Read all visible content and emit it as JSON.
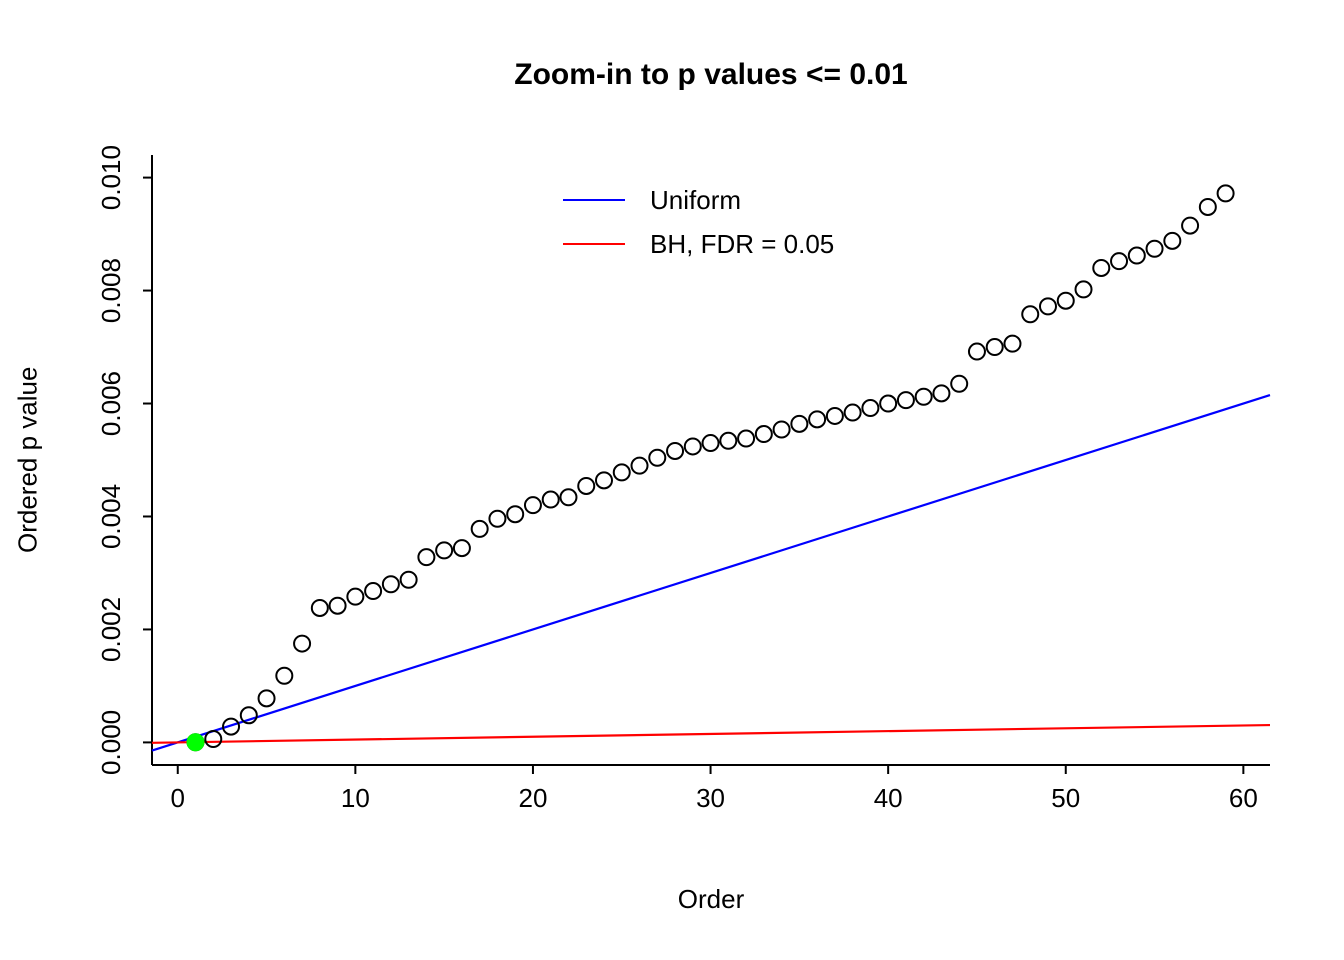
{
  "title": "Zoom-in to p values <= 0.01",
  "chart_data": {
    "type": "scatter",
    "title": "Zoom-in to p values <= 0.01",
    "xlabel": "Order",
    "ylabel": "Ordered p value",
    "xlim": [
      -1.45,
      61.5
    ],
    "ylim": [
      -0.0004,
      0.0104
    ],
    "grid": false,
    "x_ticks": [
      0,
      10,
      20,
      30,
      40,
      50,
      60
    ],
    "x_tick_labels": [
      "0",
      "10",
      "20",
      "30",
      "40",
      "50",
      "60"
    ],
    "y_ticks": [
      0.0,
      0.002,
      0.004,
      0.006,
      0.008,
      0.01
    ],
    "y_tick_labels": [
      "0.000",
      "0.002",
      "0.004",
      "0.006",
      "0.008",
      "0.010"
    ],
    "points": {
      "marker": "circle-open",
      "color": "#000000",
      "orders": [
        1,
        2,
        3,
        4,
        5,
        6,
        7,
        8,
        9,
        10,
        11,
        12,
        13,
        14,
        15,
        16,
        17,
        18,
        19,
        20,
        21,
        22,
        23,
        24,
        25,
        26,
        27,
        28,
        29,
        30,
        31,
        32,
        33,
        34,
        35,
        36,
        37,
        38,
        39,
        40,
        41,
        42,
        43,
        44,
        45,
        46,
        47,
        48,
        49,
        50,
        51,
        52,
        53,
        54,
        55,
        56,
        57,
        58,
        59
      ],
      "p_values": [
        2e-06,
        6e-05,
        0.00028,
        0.00048,
        0.00078,
        0.00118,
        0.00175,
        0.00238,
        0.00242,
        0.00258,
        0.00268,
        0.0028,
        0.00288,
        0.00328,
        0.0034,
        0.00344,
        0.00378,
        0.00396,
        0.00404,
        0.0042,
        0.0043,
        0.00434,
        0.00454,
        0.00464,
        0.00478,
        0.0049,
        0.00504,
        0.00516,
        0.00524,
        0.0053,
        0.00534,
        0.00538,
        0.00546,
        0.00554,
        0.00564,
        0.00572,
        0.00578,
        0.00584,
        0.00592,
        0.006,
        0.00606,
        0.00612,
        0.00618,
        0.00635,
        0.00692,
        0.007,
        0.00706,
        0.00758,
        0.00772,
        0.00782,
        0.00802,
        0.0084,
        0.00852,
        0.00862,
        0.00874,
        0.00888,
        0.00915,
        0.00948,
        0.00972
      ]
    },
    "significant_point": {
      "order": 1,
      "p_value": 2e-06,
      "color": "#00ff00",
      "marker": "circle-filled"
    },
    "lines": [
      {
        "name": "Uniform",
        "color": "#0000ff",
        "slope": 0.0001,
        "intercept": 0
      },
      {
        "name": "BH, FDR = 0.05",
        "color": "#ff0000",
        "slope": 5e-06,
        "intercept": 0
      }
    ],
    "legend": {
      "position": "top-center-inside",
      "box": false,
      "entries": [
        {
          "label": "Uniform",
          "color": "#0000ff"
        },
        {
          "label": "BH, FDR = 0.05",
          "color": "#ff0000"
        }
      ]
    }
  }
}
